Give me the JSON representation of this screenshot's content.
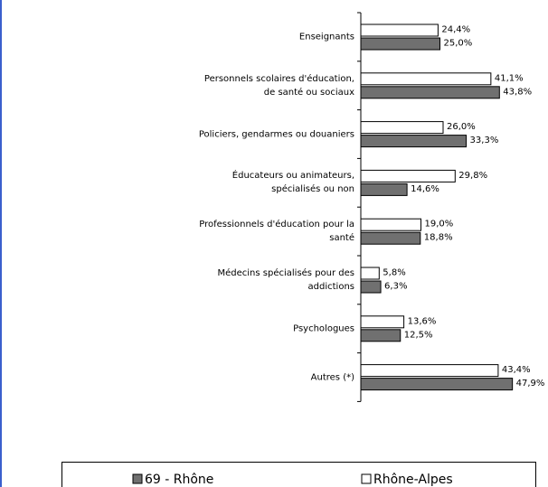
{
  "chart_data": {
    "type": "bar",
    "orientation": "horizontal",
    "categories": [
      "Enseignants",
      "Personnels scolaires d'éducation,\nde santé ou sociaux",
      "Policiers, gendarmes ou douaniers",
      "Éducateurs ou animateurs,\nspécialisés ou non",
      "Professionnels d'éducation pour la\nsanté",
      "Médecins spécialisés pour des\naddictions",
      "Psychologues",
      "Autres (*)"
    ],
    "series": [
      {
        "name": "69 - Rhône",
        "color": "#707070",
        "values": [
          25.0,
          43.8,
          33.3,
          14.6,
          18.8,
          6.3,
          12.5,
          47.9
        ],
        "value_labels": [
          "25,0%",
          "43,8%",
          "33,3%",
          "14,6%",
          "18,8%",
          "6,3%",
          "12,5%",
          "47,9%"
        ]
      },
      {
        "name": "Rhône-Alpes",
        "color": "#ffffff",
        "values": [
          24.4,
          41.1,
          26.0,
          29.8,
          19.0,
          5.8,
          13.6,
          43.4
        ],
        "value_labels": [
          "24,4%",
          "41,1%",
          "26,0%",
          "29,8%",
          "19,0%",
          "5,8%",
          "13,6%",
          "43,4%"
        ]
      }
    ]
  }
}
